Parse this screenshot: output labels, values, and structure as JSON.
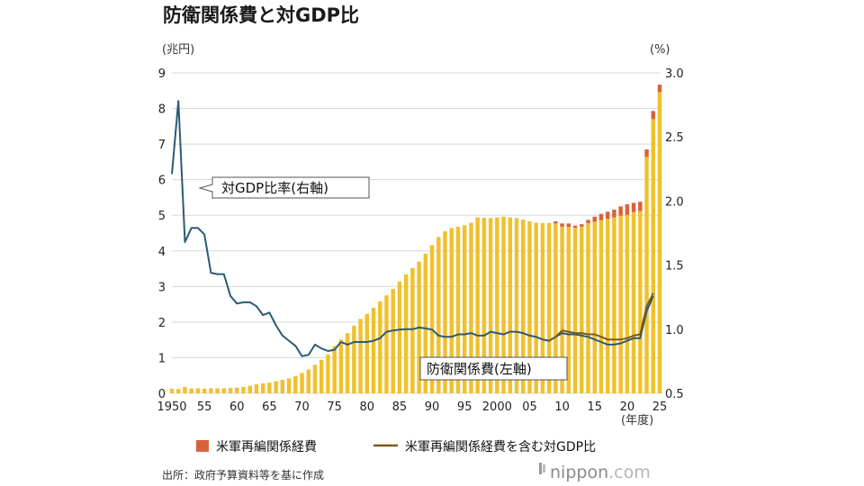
{
  "title": "防衛関係費と対GDP比",
  "source": "出所：政府予算資料等を基に作成",
  "brand": {
    "name": "nippon",
    "suffix": ".com"
  },
  "colors": {
    "bar": "#efc12f",
    "bar_usfr": "#d9623c",
    "ratio_line": "#2c5a73",
    "ratio_incl_line": "#7a5a20",
    "grid": "#d8d8d8",
    "callout_border": "#555555"
  },
  "chart_data": {
    "type": "bar+line",
    "title": "防衛関係費と対GDP比",
    "y_left_label": "(兆円)",
    "y_right_label": "(%)",
    "x_unit_label": "(年度)",
    "ylim_left": [
      0,
      9
    ],
    "ylim_right": [
      0.5,
      3.0
    ],
    "y_left_ticks": [
      "0",
      "1",
      "2",
      "3",
      "4",
      "5",
      "6",
      "7",
      "8",
      "9"
    ],
    "y_right_ticks": [
      "0.5",
      "1.0",
      "1.5",
      "2.0",
      "2.5",
      "3.0"
    ],
    "x_tick_labels": [
      {
        "year": 1950,
        "label": "1950"
      },
      {
        "year": 1955,
        "label": "55"
      },
      {
        "year": 1960,
        "label": "60"
      },
      {
        "year": 1965,
        "label": "65"
      },
      {
        "year": 1970,
        "label": "70"
      },
      {
        "year": 1975,
        "label": "75"
      },
      {
        "year": 1980,
        "label": "80"
      },
      {
        "year": 1985,
        "label": "85"
      },
      {
        "year": 1990,
        "label": "90"
      },
      {
        "year": 1995,
        "label": "95"
      },
      {
        "year": 2000,
        "label": "2000"
      },
      {
        "year": 2005,
        "label": "05"
      },
      {
        "year": 2010,
        "label": "10"
      },
      {
        "year": 2015,
        "label": "15"
      },
      {
        "year": 2020,
        "label": "20"
      },
      {
        "year": 2025,
        "label": "25"
      }
    ],
    "years": [
      1950,
      1951,
      1952,
      1953,
      1954,
      1955,
      1956,
      1957,
      1958,
      1959,
      1960,
      1961,
      1962,
      1963,
      1964,
      1965,
      1966,
      1967,
      1968,
      1969,
      1970,
      1971,
      1972,
      1973,
      1974,
      1975,
      1976,
      1977,
      1978,
      1979,
      1980,
      1981,
      1982,
      1983,
      1984,
      1985,
      1986,
      1987,
      1988,
      1989,
      1990,
      1991,
      1992,
      1993,
      1994,
      1995,
      1996,
      1997,
      1998,
      1999,
      2000,
      2001,
      2002,
      2003,
      2004,
      2005,
      2006,
      2007,
      2008,
      2009,
      2010,
      2011,
      2012,
      2013,
      2014,
      2015,
      2016,
      2017,
      2018,
      2019,
      2020,
      2021,
      2022,
      2023,
      2024,
      2025
    ],
    "series": [
      {
        "name": "防衛関係費",
        "axis": "left",
        "kind": "bar",
        "values": [
          0.13,
          0.12,
          0.18,
          0.13,
          0.14,
          0.13,
          0.14,
          0.14,
          0.14,
          0.15,
          0.16,
          0.18,
          0.21,
          0.25,
          0.28,
          0.3,
          0.34,
          0.38,
          0.42,
          0.48,
          0.57,
          0.67,
          0.8,
          0.94,
          1.09,
          1.33,
          1.51,
          1.69,
          1.9,
          2.09,
          2.23,
          2.4,
          2.58,
          2.75,
          2.93,
          3.14,
          3.34,
          3.52,
          3.7,
          3.92,
          4.16,
          4.39,
          4.55,
          4.64,
          4.68,
          4.72,
          4.79,
          4.94,
          4.93,
          4.92,
          4.94,
          4.96,
          4.94,
          4.92,
          4.88,
          4.83,
          4.79,
          4.78,
          4.77,
          4.77,
          4.68,
          4.67,
          4.65,
          4.68,
          4.78,
          4.82,
          4.86,
          4.9,
          4.94,
          4.99,
          5.01,
          5.09,
          5.12,
          6.64,
          7.7,
          8.46
        ]
      },
      {
        "name": "米軍再編関係経費",
        "axis": "left",
        "kind": "bar-stack",
        "values": [
          0,
          0,
          0,
          0,
          0,
          0,
          0,
          0,
          0,
          0,
          0,
          0,
          0,
          0,
          0,
          0,
          0,
          0,
          0,
          0,
          0,
          0,
          0,
          0,
          0,
          0,
          0,
          0,
          0,
          0,
          0,
          0,
          0,
          0,
          0,
          0,
          0,
          0,
          0,
          0,
          0,
          0,
          0,
          0,
          0,
          0,
          0,
          0,
          0,
          0,
          0,
          0,
          0,
          0,
          0,
          0,
          0,
          0,
          0.01,
          0.06,
          0.09,
          0.1,
          0.06,
          0.07,
          0.09,
          0.14,
          0.18,
          0.2,
          0.22,
          0.26,
          0.3,
          0.26,
          0.26,
          0.21,
          0.23,
          0.21
        ]
      },
      {
        "name": "対GDP比率(右軸)",
        "axis": "right",
        "kind": "line",
        "values": [
          2.21,
          2.78,
          1.68,
          1.79,
          1.79,
          1.74,
          1.44,
          1.43,
          1.43,
          1.26,
          1.2,
          1.21,
          1.21,
          1.18,
          1.11,
          1.13,
          1.03,
          0.95,
          0.91,
          0.87,
          0.79,
          0.8,
          0.88,
          0.85,
          0.83,
          0.84,
          0.9,
          0.88,
          0.9,
          0.9,
          0.9,
          0.91,
          0.93,
          0.98,
          0.99,
          0.997,
          1.0,
          1.0,
          1.013,
          1.006,
          0.997,
          0.95,
          0.94,
          0.94,
          0.96,
          0.96,
          0.97,
          0.95,
          0.95,
          0.98,
          0.97,
          0.96,
          0.98,
          0.98,
          0.97,
          0.95,
          0.94,
          0.92,
          0.91,
          0.94,
          0.97,
          0.96,
          0.96,
          0.95,
          0.94,
          0.92,
          0.9,
          0.88,
          0.88,
          0.89,
          0.91,
          0.93,
          0.93,
          1.14,
          1.26
        ]
      },
      {
        "name": "米軍再編関係経費を含む対GDP比",
        "axis": "right",
        "kind": "line",
        "start_year": 2008,
        "values": [
          0.91,
          0.94,
          0.99,
          0.98,
          0.97,
          0.97,
          0.96,
          0.96,
          0.94,
          0.92,
          0.92,
          0.92,
          0.93,
          0.95,
          0.96,
          1.18,
          1.28
        ]
      }
    ],
    "annotations": [
      "対GDP比率(右軸)",
      "防衛関係費(左軸)"
    ],
    "legend": [
      {
        "label": "米軍再編関係経費",
        "kind": "square"
      },
      {
        "label": "米軍再編関係経費を含む対GDP比",
        "kind": "line"
      }
    ]
  }
}
